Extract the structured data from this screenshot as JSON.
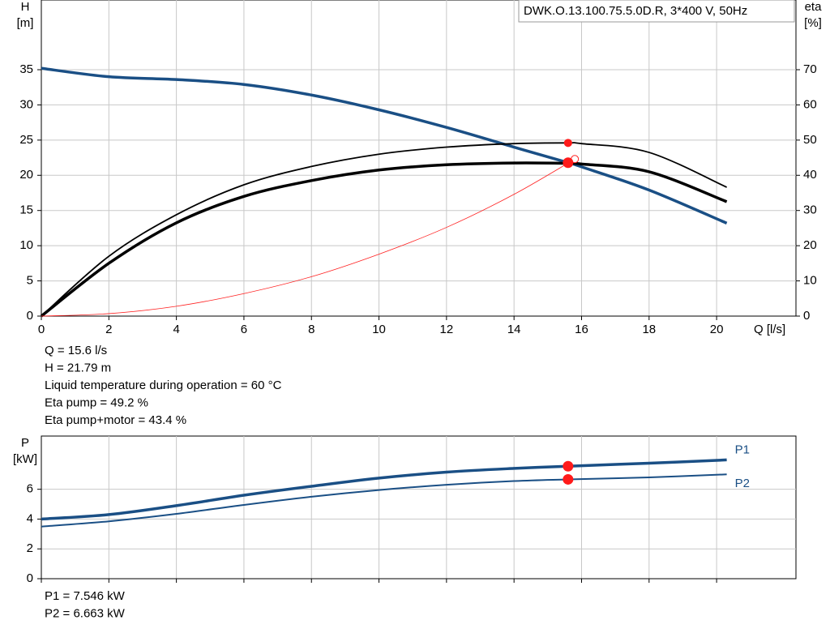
{
  "chart_data": [
    {
      "type": "line",
      "legend_text": "DWK.O.13.100.75.5.0D.R, 3*400 V, 50Hz",
      "y_label": [
        "H",
        "[m]"
      ],
      "y2_label": [
        "eta",
        "[%]"
      ],
      "x_label": "Q [l/s]",
      "xlim": [
        0,
        22.35
      ],
      "xticks": [
        0,
        2,
        4,
        6,
        8,
        10,
        12,
        14,
        16,
        18,
        20
      ],
      "ylim": [
        0,
        44.9
      ],
      "yticks": [
        0,
        5,
        10,
        15,
        20,
        25,
        30,
        35
      ],
      "y2lim": [
        0,
        89.8
      ],
      "y2ticks": [
        0,
        10,
        20,
        30,
        40,
        50,
        60,
        70
      ],
      "grid": true,
      "series": [
        {
          "color": "#1a4f85",
          "width": 3.5,
          "axis": "y",
          "x": [
            0,
            2,
            4,
            6,
            8,
            10,
            12,
            14,
            15.6,
            16,
            18,
            20.3
          ],
          "values": [
            35.2,
            34.0,
            33.6,
            32.9,
            31.4,
            29.3,
            26.8,
            24.0,
            21.8,
            21.2,
            17.9,
            13.2
          ]
        },
        {
          "color": "#000000",
          "width": 1.8,
          "axis": "y2",
          "x": [
            0,
            2,
            4,
            6,
            8,
            10,
            12,
            14,
            15.6,
            16,
            18,
            20.3
          ],
          "values": [
            0,
            17,
            28.8,
            37.3,
            42.5,
            46,
            48,
            49,
            49.2,
            49,
            46.5,
            36.6
          ]
        },
        {
          "color": "#000000",
          "width": 3.5,
          "axis": "y2",
          "x": [
            0,
            2,
            4,
            6,
            8,
            10,
            12,
            14,
            15.6,
            16,
            18,
            20.3
          ],
          "values": [
            0,
            15,
            26.5,
            34,
            38.5,
            41.5,
            43,
            43.5,
            43.4,
            43.2,
            41,
            32.5
          ]
        },
        {
          "color": "#ff2020",
          "width": 0.8,
          "axis": "y",
          "end_marker": "open",
          "x": [
            0,
            2,
            4,
            6,
            8,
            10,
            12,
            14,
            15.8
          ],
          "values": [
            0,
            0.35,
            1.4,
            3.2,
            5.6,
            8.8,
            12.6,
            17.3,
            22.3
          ]
        }
      ],
      "markers": [
        {
          "x": 15.6,
          "y": 49.2,
          "axis": "y2",
          "color": "#ff1a1a"
        },
        {
          "x": 15.6,
          "y": 43.4,
          "axis": "y2",
          "color": "#ff1a1a"
        },
        {
          "x": 15.6,
          "y": 21.79,
          "axis": "y",
          "color": "#ff1a1a"
        }
      ],
      "notes": [
        "Q = 15.6 l/s",
        "H = 21.79 m",
        "Liquid temperature during operation = 60 °C",
        "Eta pump = 49.2 %",
        "Eta pump+motor = 43.4 %"
      ]
    },
    {
      "type": "line",
      "y_label": [
        "P",
        "[kW]"
      ],
      "xlim": [
        0,
        22.35
      ],
      "ylim": [
        0,
        9.57
      ],
      "yticks": [
        0,
        2,
        4,
        6
      ],
      "grid": true,
      "series": [
        {
          "name": "P1",
          "color": "#1a4f85",
          "width": 3.5,
          "axis": "y",
          "x": [
            0,
            2,
            4,
            6,
            8,
            10,
            12,
            14,
            15.6,
            18,
            20.3
          ],
          "values": [
            4.0,
            4.3,
            4.9,
            5.6,
            6.2,
            6.75,
            7.15,
            7.4,
            7.546,
            7.75,
            7.97
          ]
        },
        {
          "name": "P2",
          "color": "#1a4f85",
          "width": 2,
          "axis": "y",
          "x": [
            0,
            2,
            4,
            6,
            8,
            10,
            12,
            14,
            15.6,
            18,
            20.3
          ],
          "values": [
            3.5,
            3.85,
            4.35,
            4.95,
            5.5,
            5.95,
            6.3,
            6.55,
            6.663,
            6.8,
            7.0
          ]
        }
      ],
      "markers": [
        {
          "x": 15.6,
          "y": 7.546,
          "axis": "y",
          "color": "#ff1a1a"
        },
        {
          "x": 15.6,
          "y": 6.663,
          "axis": "y",
          "color": "#ff1a1a"
        }
      ],
      "notes": [
        "P1 = 7.546 kW",
        "P2 = 6.663 kW"
      ]
    }
  ]
}
